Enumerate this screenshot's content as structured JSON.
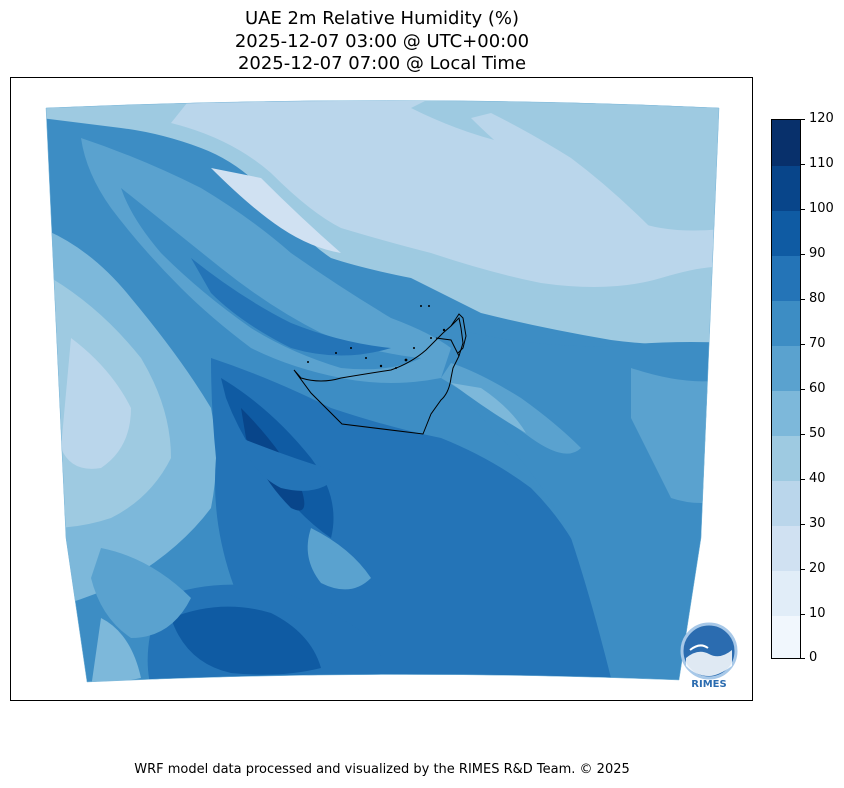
{
  "title": {
    "line1": "UAE 2m Relative Humidity (%)",
    "line2": "2025-12-07 03:00 @ UTC+00:00",
    "line3": "2025-12-07 07:00 @ Local Time"
  },
  "colorbar": {
    "ticks": [
      "0",
      "10",
      "20",
      "30",
      "40",
      "50",
      "60",
      "70",
      "80",
      "90",
      "100",
      "110",
      "120"
    ],
    "min": 0,
    "max": 120,
    "colors": [
      "#f1f7fd",
      "#e1edf8",
      "#d0e1f2",
      "#bad6eb",
      "#9ecae1",
      "#7db8da",
      "#5aa2cf",
      "#3d8dc4",
      "#2474b7",
      "#0f5ba3",
      "#08458a",
      "#08306b"
    ]
  },
  "logo": {
    "text": "RIMES"
  },
  "footer": "WRF model data processed and visualized by the RIMES R&D Team. © 2025"
}
